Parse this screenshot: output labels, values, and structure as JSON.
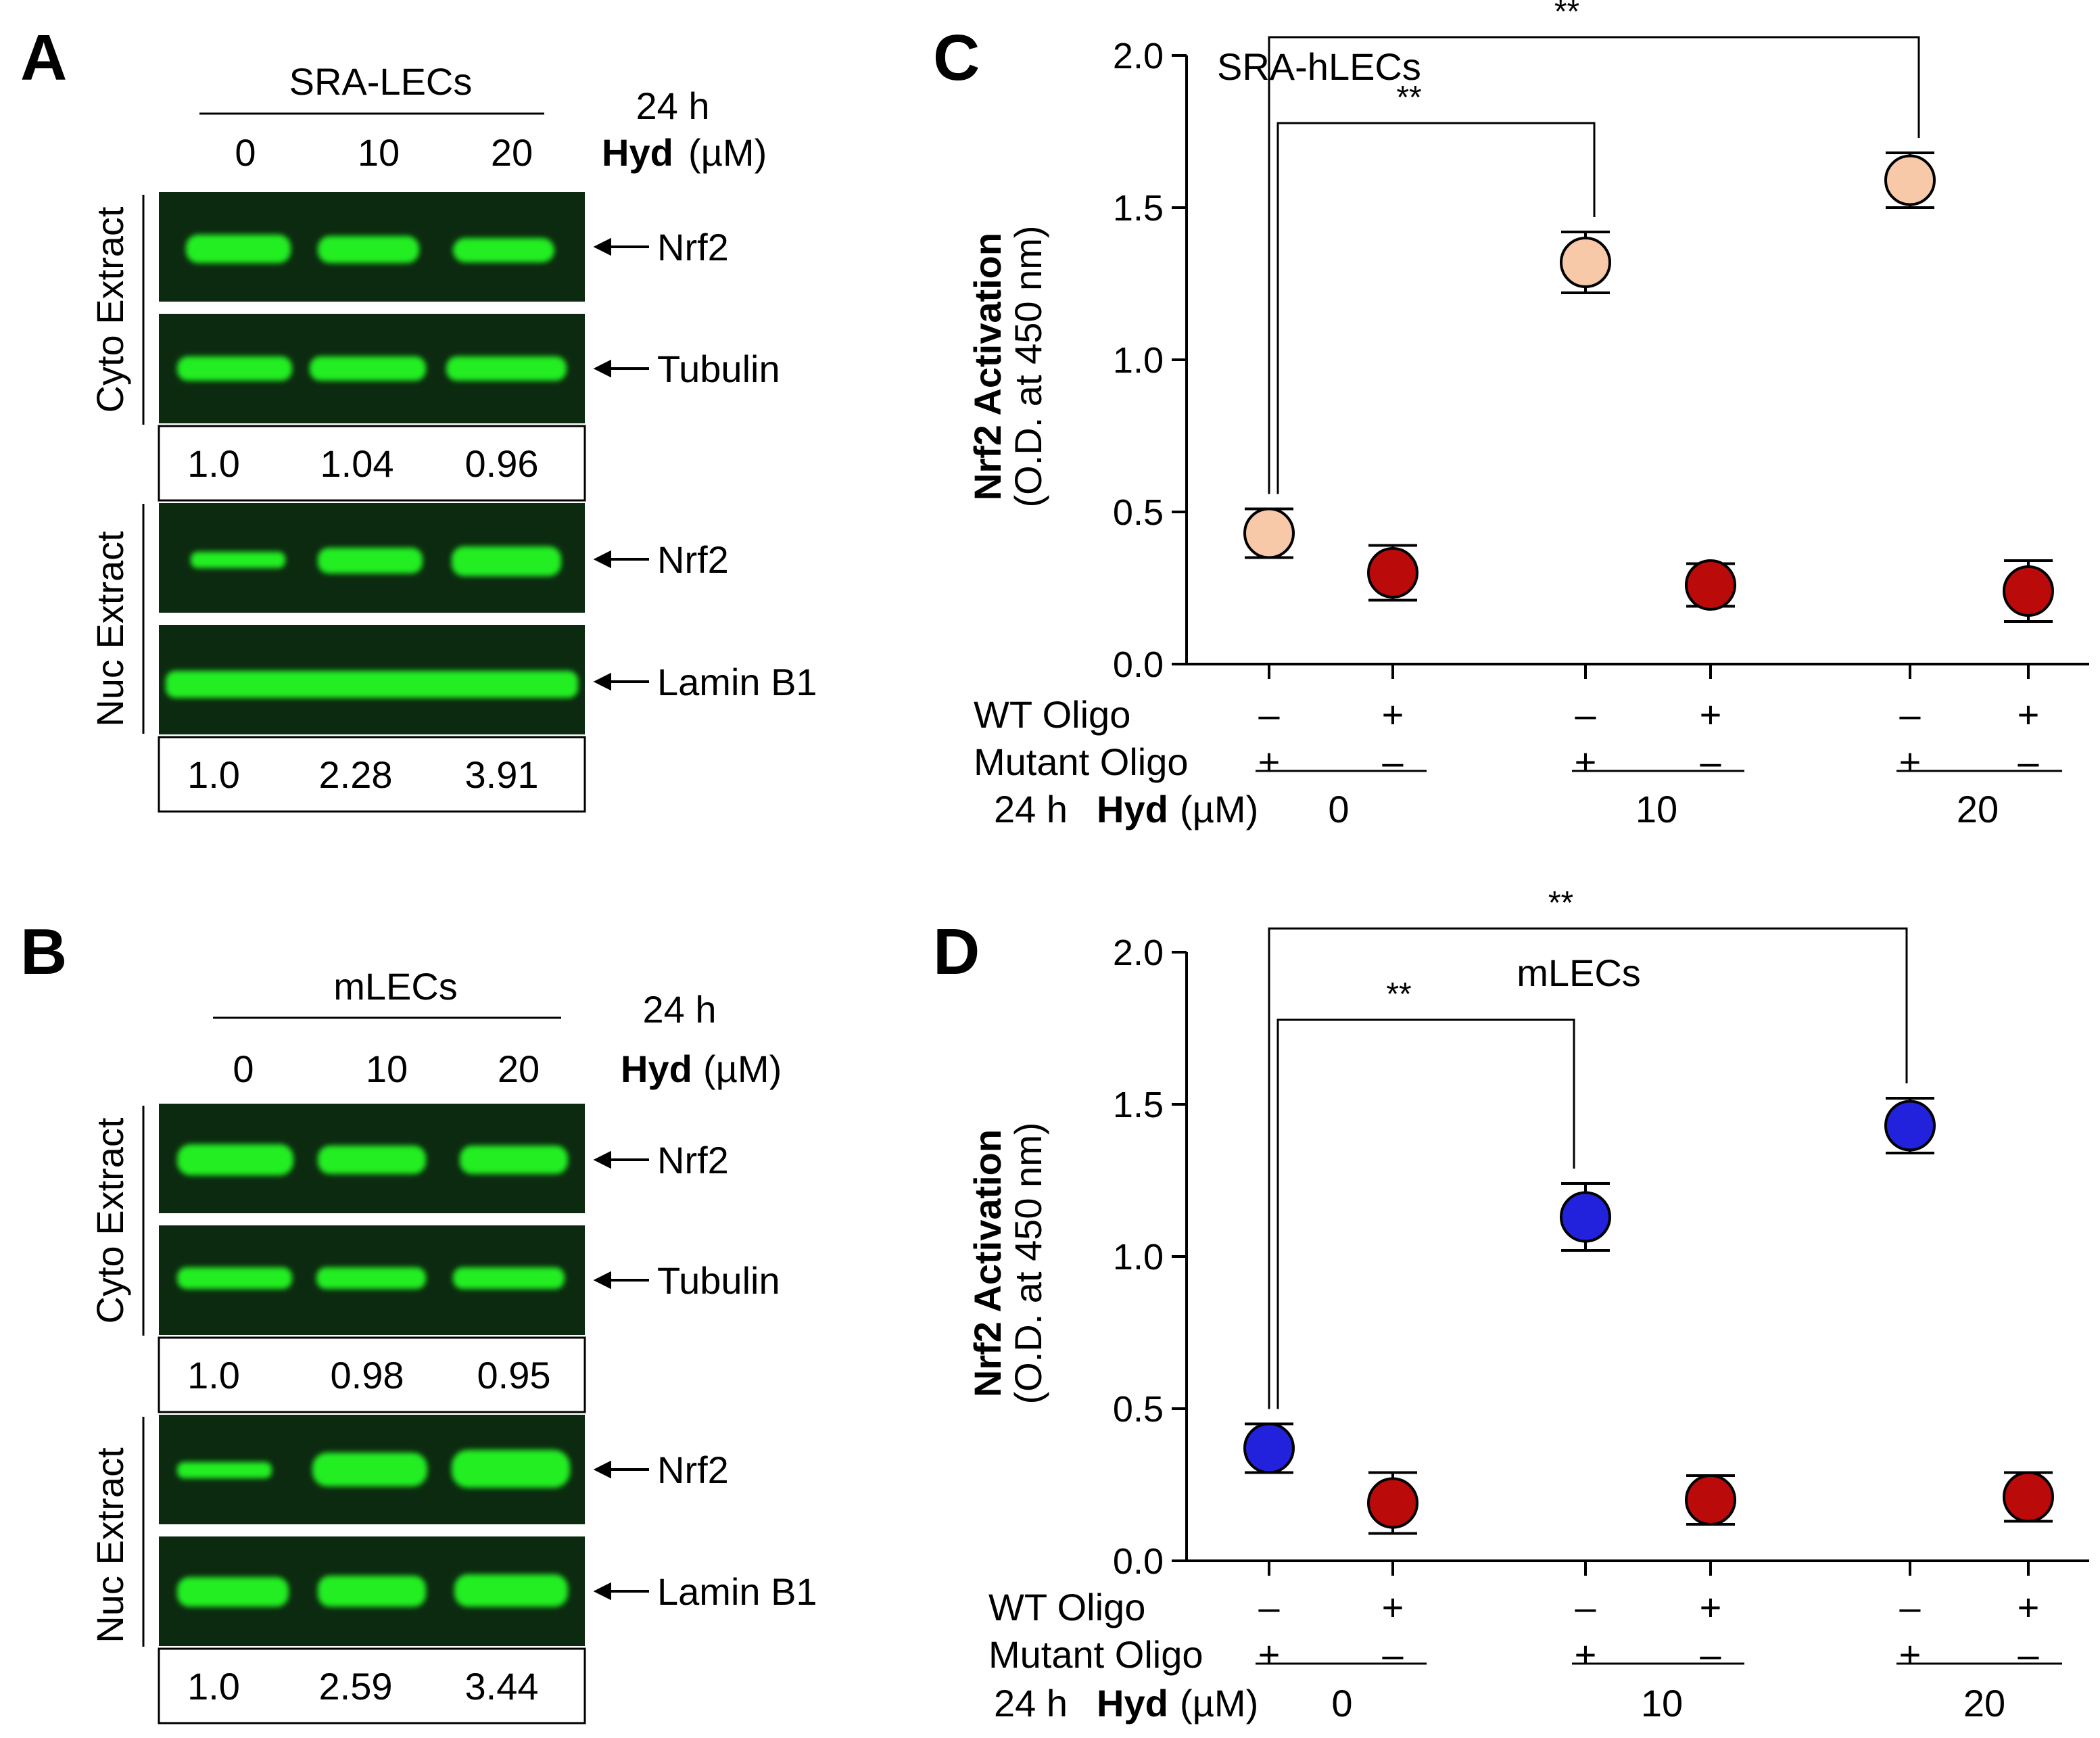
{
  "figure": {
    "panel_letters": [
      "A",
      "B",
      "C",
      "D"
    ]
  },
  "panel_a": {
    "cell_label": "SRA-LECs",
    "time_label": "24 h",
    "hyd_label": "Hyd",
    "unit_label": "(µM)",
    "doses": [
      "0",
      "10",
      "20"
    ],
    "group_labels": [
      "Cyto Extract",
      "Nuc Extract"
    ],
    "blots": [
      "Nrf2",
      "Tubulin",
      "Nrf2",
      "Lamin B1"
    ],
    "cyto_ratios": [
      "1.0",
      "1.04",
      "0.96"
    ],
    "nuc_ratios": [
      "1.0",
      "2.28",
      "3.91"
    ]
  },
  "panel_b": {
    "cell_label": "mLECs",
    "time_label": "24 h",
    "hyd_label": "Hyd",
    "unit_label": "(µM)",
    "doses": [
      "0",
      "10",
      "20"
    ],
    "group_labels": [
      "Cyto Extract",
      "Nuc Extract"
    ],
    "blots": [
      "Nrf2",
      "Tubulin",
      "Nrf2",
      "Lamin B1"
    ],
    "cyto_ratios": [
      "1.0",
      "0.98",
      "0.95"
    ],
    "nuc_ratios": [
      "1.0",
      "2.59",
      "3.44"
    ]
  },
  "colors": {
    "blot_bg": "#0c2a10",
    "band": "#22ee22",
    "wt_fill": "#bb0a0a",
    "mutant_fill_c": "#f7c9a9",
    "mutant_fill_d": "#2222dd"
  },
  "chart_data": [
    {
      "panel": "C",
      "type": "scatter",
      "title": "SRA-hLECs",
      "ylabel_bold": "Nrf2 Activation",
      "ylabel": "(O.D. at 450 nm)",
      "ylim": [
        0.0,
        2.0
      ],
      "yticks": [
        "0.0",
        "0.5",
        "1.0",
        "1.5",
        "2.0"
      ],
      "row_labels": {
        "wt": "WT Oligo",
        "mutant": "Mutant  Oligo",
        "time": "24 h",
        "hyd": "Hyd",
        "unit": "(µM)"
      },
      "wt_signs": [
        "–",
        "+",
        "–",
        "+",
        "–",
        "+"
      ],
      "mutant_signs": [
        "+",
        "–",
        "+",
        "–",
        "+",
        "–"
      ],
      "dose_labels": [
        "0",
        "10",
        "20"
      ],
      "series": [
        {
          "name": "Mutant Oligo",
          "values": [
            0.43,
            1.32,
            1.59
          ],
          "errors": [
            0.08,
            0.1,
            0.09
          ]
        },
        {
          "name": "WT Oligo",
          "values": [
            0.3,
            0.26,
            0.24
          ],
          "errors": [
            0.09,
            0.07,
            0.1
          ]
        }
      ],
      "significance": [
        "**",
        "**"
      ]
    },
    {
      "panel": "D",
      "type": "scatter",
      "title": "mLECs",
      "ylabel_bold": "Nrf2 Activation",
      "ylabel": "(O.D. at 450 nm)",
      "ylim": [
        0.0,
        2.0
      ],
      "yticks": [
        "0.0",
        "0.5",
        "1.0",
        "1.5",
        "2.0"
      ],
      "row_labels": {
        "wt": "WT Oligo",
        "mutant": "Mutant  Oligo",
        "time": "24 h",
        "hyd": "Hyd",
        "unit": "(µM)"
      },
      "wt_signs": [
        "–",
        "+",
        "–",
        "+",
        "–",
        "+"
      ],
      "mutant_signs": [
        "+",
        "–",
        "+",
        "–",
        "+",
        "–"
      ],
      "dose_labels": [
        "0",
        "10",
        "20"
      ],
      "series": [
        {
          "name": "Mutant Oligo",
          "values": [
            0.37,
            1.13,
            1.43
          ],
          "errors": [
            0.08,
            0.11,
            0.09
          ]
        },
        {
          "name": "WT Oligo",
          "values": [
            0.19,
            0.2,
            0.21
          ],
          "errors": [
            0.1,
            0.08,
            0.08
          ]
        }
      ],
      "significance": [
        "**",
        "**"
      ]
    }
  ]
}
